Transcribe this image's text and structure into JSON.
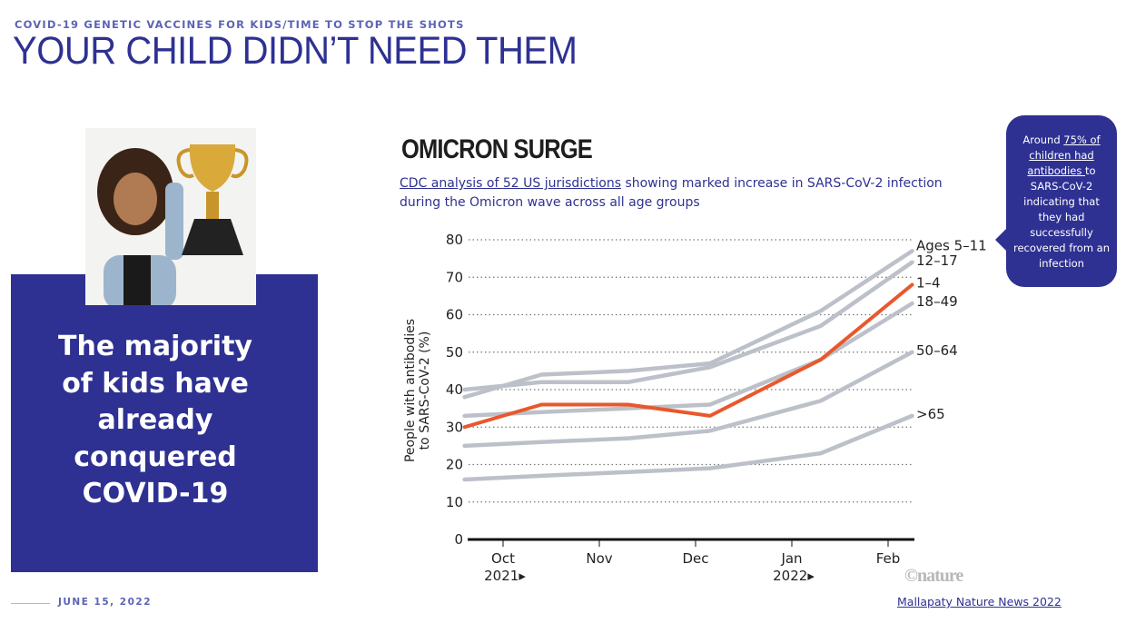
{
  "header": {
    "kicker": "COVID-19 GENETIC VACCINES FOR KIDS/TIME TO STOP THE SHOTS",
    "title": "YOUR CHILD DIDN’T NEED THEM"
  },
  "left_panel": {
    "lines": [
      "The majority",
      "of kids have",
      "already",
      "conquered",
      "COVID-19"
    ]
  },
  "callout": {
    "prefix": "Around ",
    "link_text": "75% of children had antibodies ",
    "suffix": "to SARS-CoV-2 indicating that they had successfully recovered from an infection"
  },
  "footer": {
    "date": "JUNE 15, 2022",
    "source_link": "Mallapaty Nature News 2022"
  },
  "colors": {
    "brand": "#2e3192",
    "highlight": "#e8582c",
    "series_grey": "#bcc0c9"
  },
  "chart_data": {
    "type": "line",
    "title": "OMICRON SURGE",
    "subtitle_link": "CDC analysis of 52 US jurisdictions",
    "subtitle_rest": " showing marked increase in SARS-CoV-2 infection during the Omicron wave across all age groups",
    "ylabel_line1": "People with antibodies",
    "ylabel_line2": "to SARS-CoV-2 (%)",
    "ylim": [
      0,
      80
    ],
    "yticks": [
      "0",
      "10",
      "20",
      "30",
      "40",
      "50",
      "60",
      "70",
      "80"
    ],
    "xticks": [
      {
        "label": "Oct",
        "sub": "2021▸",
        "month": 10
      },
      {
        "label": "Nov",
        "sub": "",
        "month": 11
      },
      {
        "label": "Dec",
        "sub": "",
        "month": 12
      },
      {
        "label": "Jan",
        "sub": "2022▸",
        "month": 13
      },
      {
        "label": "Feb",
        "sub": "",
        "month": 14
      }
    ],
    "x": [
      9.6,
      10.4,
      11.3,
      12.15,
      13.3,
      14.25
    ],
    "series": [
      {
        "name": "Ages 5–11",
        "values": [
          38,
          44,
          45,
          47,
          61,
          77
        ],
        "highlight": false
      },
      {
        "name": "12–17",
        "values": [
          40,
          42,
          42,
          46,
          57,
          74
        ],
        "highlight": false
      },
      {
        "name": "18–49",
        "values": [
          33,
          34,
          35,
          36,
          48,
          63
        ],
        "highlight": false
      },
      {
        "name": "50–64",
        "values": [
          25,
          26,
          27,
          29,
          37,
          50
        ],
        "highlight": false
      },
      {
        "name": ">65",
        "values": [
          16,
          17,
          18,
          19,
          23,
          33
        ],
        "highlight": false
      },
      {
        "name": "1–4",
        "values": [
          30,
          36,
          36,
          33,
          48,
          68
        ],
        "highlight": true
      }
    ],
    "grid": true,
    "credit": "©nature"
  }
}
